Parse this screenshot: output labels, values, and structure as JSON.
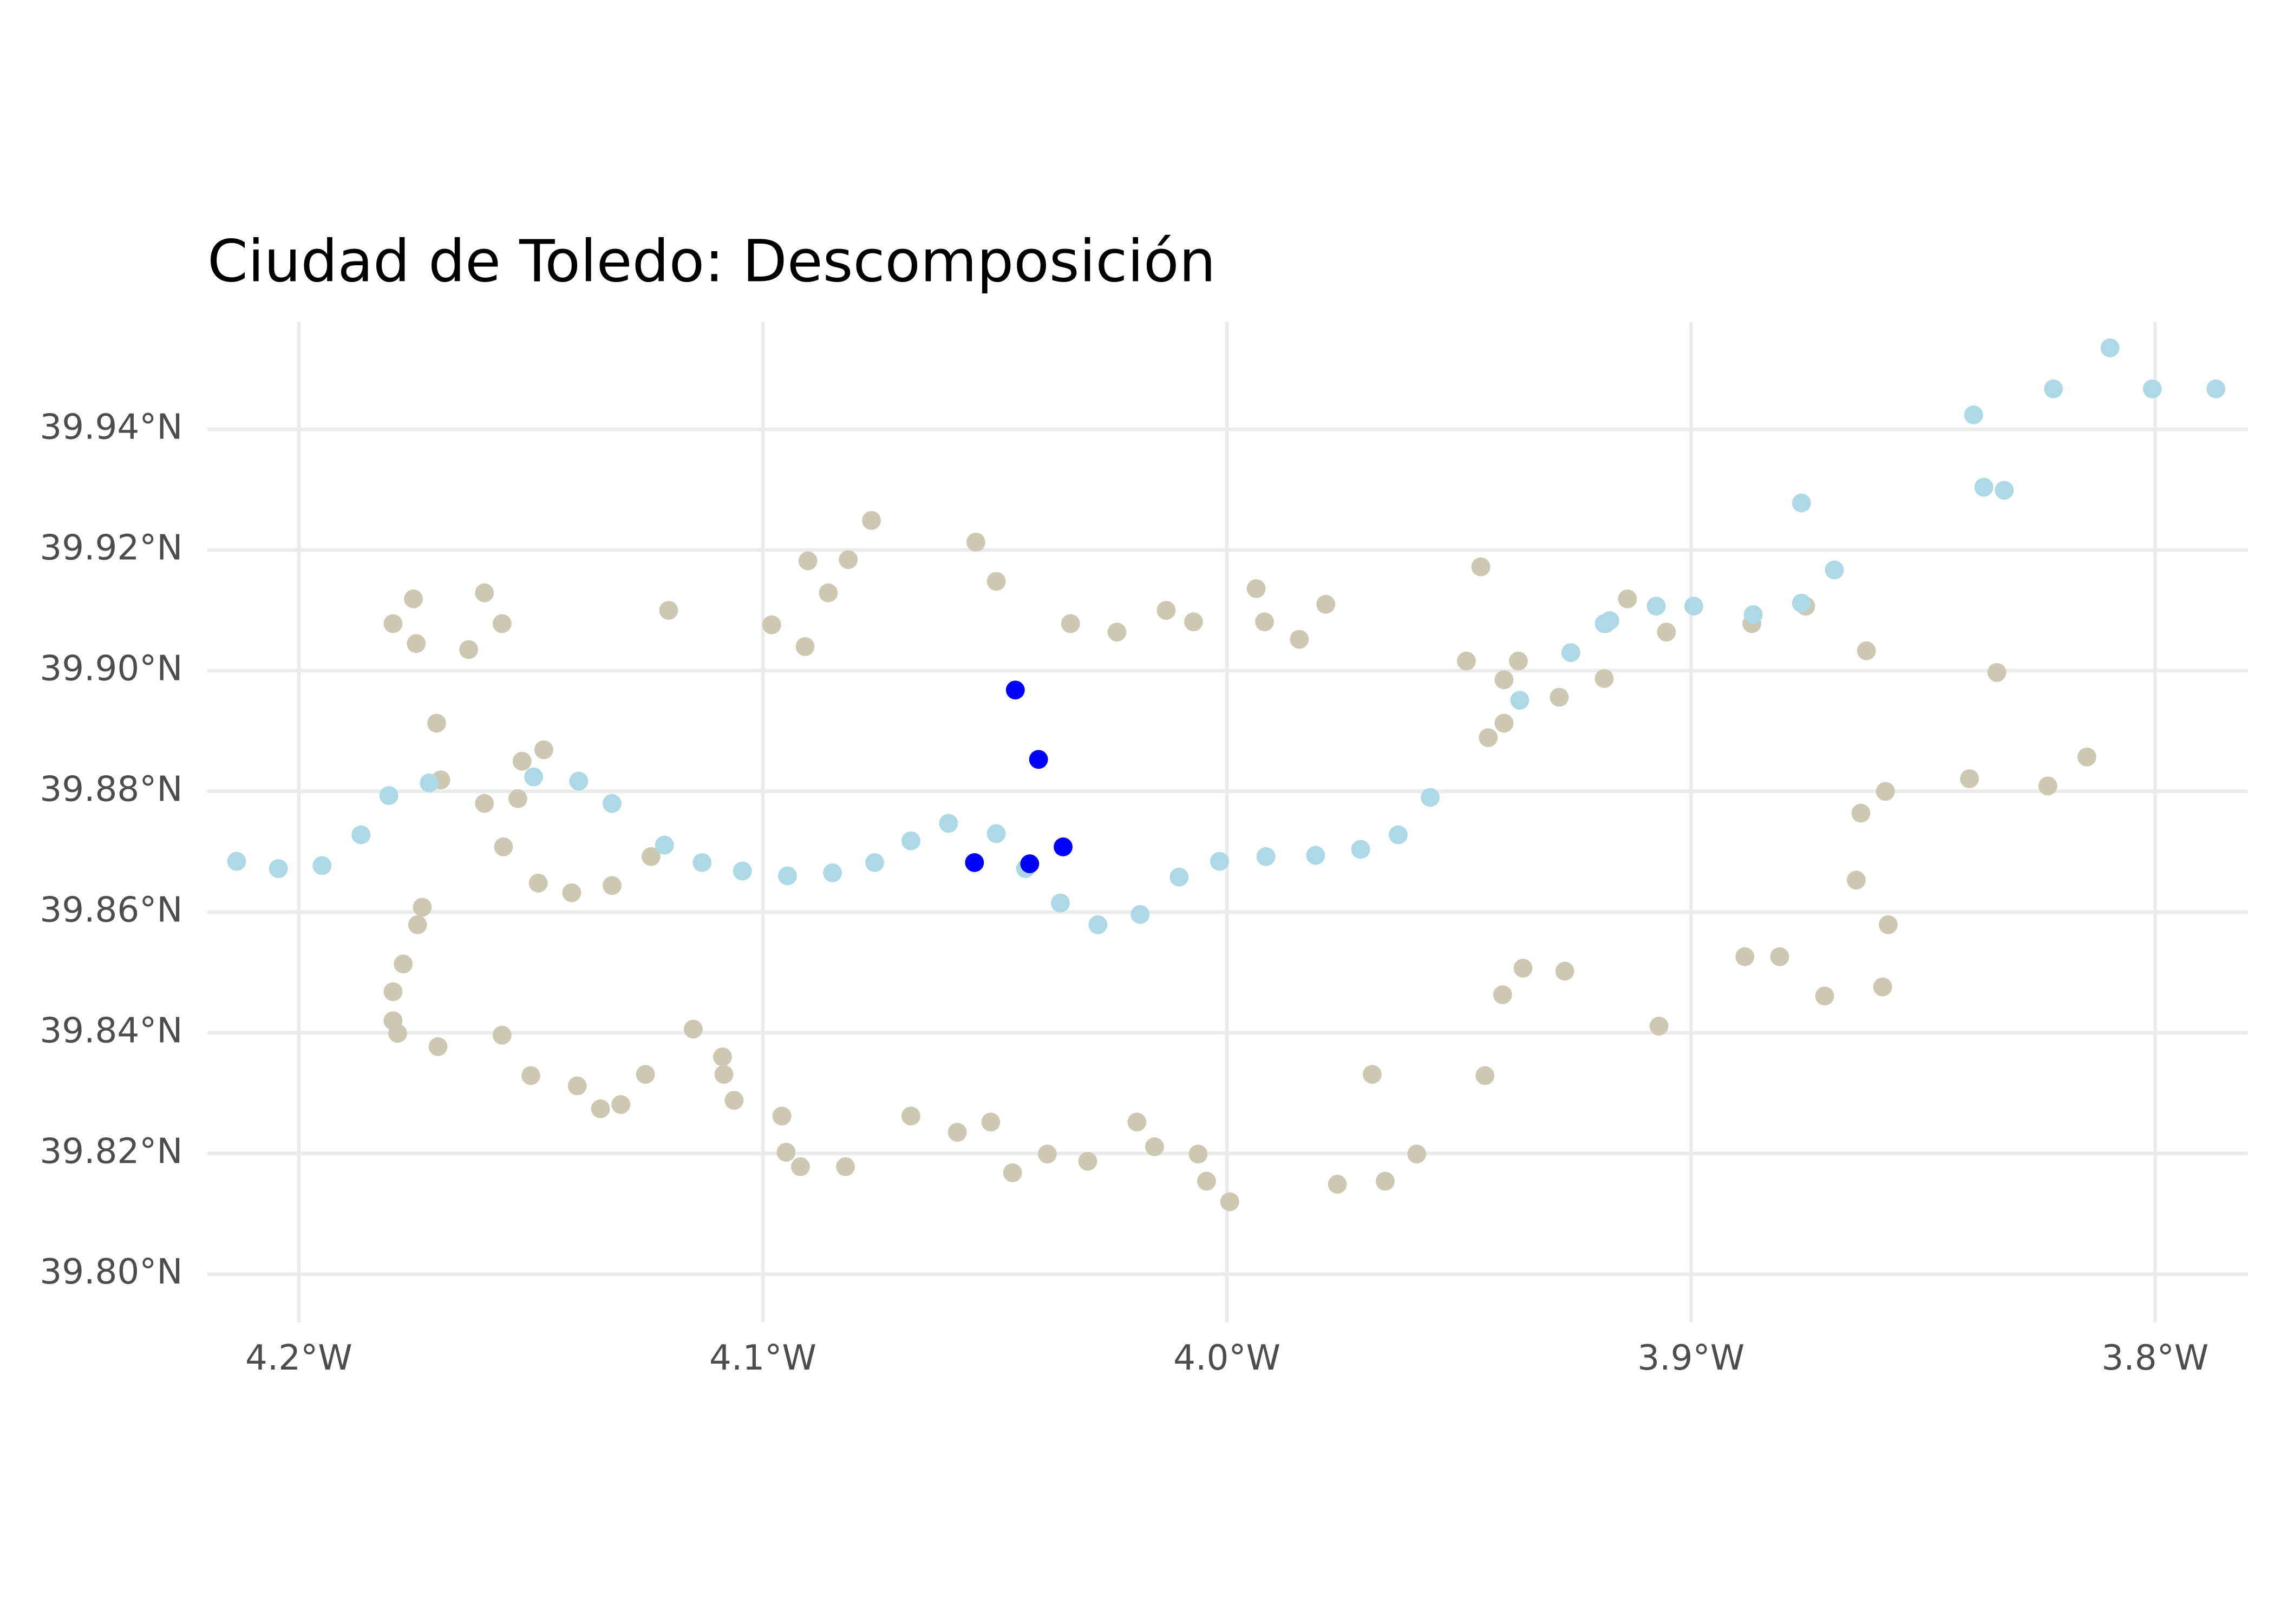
{
  "chart_data": {
    "type": "scatter",
    "title": "Ciudad de Toledo: Descomposición",
    "xlim": [
      -4.2197,
      -3.78
    ],
    "ylim": [
      39.792,
      39.9578
    ],
    "xticks": [
      {
        "value": -4.2,
        "label": "4.2°W"
      },
      {
        "value": -4.1,
        "label": "4.1°W"
      },
      {
        "value": -4.0,
        "label": "4.0°W"
      },
      {
        "value": -3.9,
        "label": "3.9°W"
      },
      {
        "value": -3.8,
        "label": "3.8°W"
      }
    ],
    "yticks": [
      {
        "value": 39.8,
        "label": "39.80°N"
      },
      {
        "value": 39.82,
        "label": "39.82°N"
      },
      {
        "value": 39.84,
        "label": "39.84°N"
      },
      {
        "value": 39.86,
        "label": "39.86°N"
      },
      {
        "value": 39.88,
        "label": "39.88°N"
      },
      {
        "value": 39.9,
        "label": "39.90°N"
      },
      {
        "value": 39.92,
        "label": "39.92°N"
      },
      {
        "value": 39.94,
        "label": "39.94°N"
      }
    ],
    "grid": true,
    "series": [
      {
        "color": "#CDC8B1",
        "x": [
          -4.1797,
          -4.1753,
          -4.1747,
          -4.1634,
          -4.16,
          -4.1562,
          -4.1703,
          -4.1694,
          -4.16,
          -4.1559,
          -4.1528,
          -4.1519,
          -4.1472,
          -4.1484,
          -4.1412,
          -4.1325,
          -4.1241,
          -4.1203,
          -4.0981,
          -4.0909,
          -4.0903,
          -4.0859,
          -4.0816,
          -4.0766,
          -4.0541,
          -4.0497,
          -4.0337,
          -4.0237,
          -4.0131,
          -4.0072,
          -3.9937,
          -3.9919,
          -3.9844,
          -3.9787,
          -3.9484,
          -3.9453,
          -3.9403,
          -3.9372,
          -3.9403,
          -3.9437,
          -3.9284,
          -3.9187,
          -3.9184,
          -3.9137,
          -3.9053,
          -3.8869,
          -3.8753,
          -3.8622,
          -3.8341,
          -3.84,
          -3.8231,
          -3.8147,
          -3.8581,
          -3.8634,
          -3.8644,
          -3.8575,
          -3.8587,
          -3.8712,
          -3.8809,
          -3.8884,
          -3.9069,
          -3.9272,
          -3.9362,
          -3.9406,
          -3.9444,
          -3.9591,
          -3.9659,
          -3.9687,
          -3.9762,
          -3.9994,
          -4.0044,
          -4.0062,
          -4.0156,
          -4.0194,
          -4.03,
          -4.0387,
          -4.0462,
          -4.0509,
          -4.0581,
          -4.0681,
          -4.0822,
          -4.0919,
          -4.095,
          -4.0959,
          -4.1062,
          -4.1084,
          -4.1087,
          -4.115,
          -4.1253,
          -4.1306,
          -4.135,
          -4.14,
          -4.15,
          -4.1562,
          -4.17,
          -4.1787,
          -4.1797,
          -4.1797,
          -4.1775,
          -4.1744,
          -4.1734
        ],
        "values": [
          39.9078,
          39.9119,
          39.9045,
          39.9035,
          39.9129,
          39.9078,
          39.8913,
          39.8819,
          39.878,
          39.8708,
          39.8788,
          39.885,
          39.8869,
          39.8648,
          39.8632,
          39.8644,
          39.8692,
          39.91,
          39.9076,
          39.904,
          39.9182,
          39.9129,
          39.9184,
          39.9249,
          39.9213,
          39.9148,
          39.9078,
          39.9064,
          39.91,
          39.9081,
          39.9136,
          39.9081,
          39.9052,
          39.911,
          39.9016,
          39.9172,
          39.8985,
          39.9016,
          39.8913,
          39.8889,
          39.8956,
          39.8987,
          39.9078,
          39.9119,
          39.9064,
          39.9078,
          39.9107,
          39.9033,
          39.8997,
          39.8821,
          39.8809,
          39.8857,
          39.88,
          39.8764,
          39.8653,
          39.8579,
          39.8476,
          39.8461,
          39.8526,
          39.8526,
          39.8411,
          39.8502,
          39.8507,
          39.8463,
          39.8329,
          39.8199,
          39.8154,
          39.8331,
          39.8149,
          39.812,
          39.8154,
          39.8199,
          39.8211,
          39.8252,
          39.8187,
          39.8199,
          39.8168,
          39.8252,
          39.8235,
          39.8262,
          39.8178,
          39.8178,
          39.8202,
          39.8262,
          39.8288,
          39.8331,
          39.836,
          39.8406,
          39.8331,
          39.8281,
          39.8274,
          39.8312,
          39.8329,
          39.8396,
          39.8377,
          39.8399,
          39.842,
          39.8468,
          39.8514,
          39.8579,
          39.8608
        ]
      },
      {
        "color": "#ADD8E6",
        "x": [
          -4.2134,
          -4.2044,
          -4.195,
          -4.1866,
          -4.1806,
          -4.1719,
          -4.1494,
          -4.1397,
          -4.1325,
          -4.1212,
          -4.1131,
          -4.1044,
          -4.0947,
          -4.085,
          -4.0759,
          -4.0681,
          -4.06,
          -4.0497,
          -4.0434,
          -4.0359,
          -4.0278,
          -4.0187,
          -4.0103,
          -4.0016,
          -3.9916,
          -3.9809,
          -3.9712,
          -3.9631,
          -3.9562,
          -3.9369,
          -3.9259,
          -3.9175,
          -3.9075,
          -3.8994,
          -3.8866,
          -3.8762,
          -3.8691,
          -3.8762,
          -3.8391,
          -3.8369,
          -3.8325,
          -3.8219,
          -3.8097,
          -3.8006,
          -3.7869,
          -3.9187
        ],
        "values": [
          39.8684,
          39.8672,
          39.8677,
          39.8728,
          39.8793,
          39.8814,
          39.8824,
          39.8817,
          39.878,
          39.8711,
          39.8682,
          39.8668,
          39.866,
          39.8665,
          39.8682,
          39.8718,
          39.8747,
          39.873,
          39.8672,
          39.8615,
          39.8579,
          39.8596,
          39.8658,
          39.8684,
          39.8692,
          39.8694,
          39.8704,
          39.8728,
          39.879,
          39.8951,
          39.903,
          39.9083,
          39.9107,
          39.9107,
          39.9093,
          39.9112,
          39.9167,
          39.9278,
          39.9424,
          39.9304,
          39.9299,
          39.9467,
          39.9535,
          39.9467,
          39.9467,
          39.9078
        ]
      },
      {
        "color": "#0000FF",
        "x": [
          -4.0456,
          -4.0406,
          -4.0544,
          -4.0425,
          -4.0353
        ],
        "values": [
          39.8968,
          39.8853,
          39.8682,
          39.868,
          39.8708
        ]
      }
    ]
  }
}
